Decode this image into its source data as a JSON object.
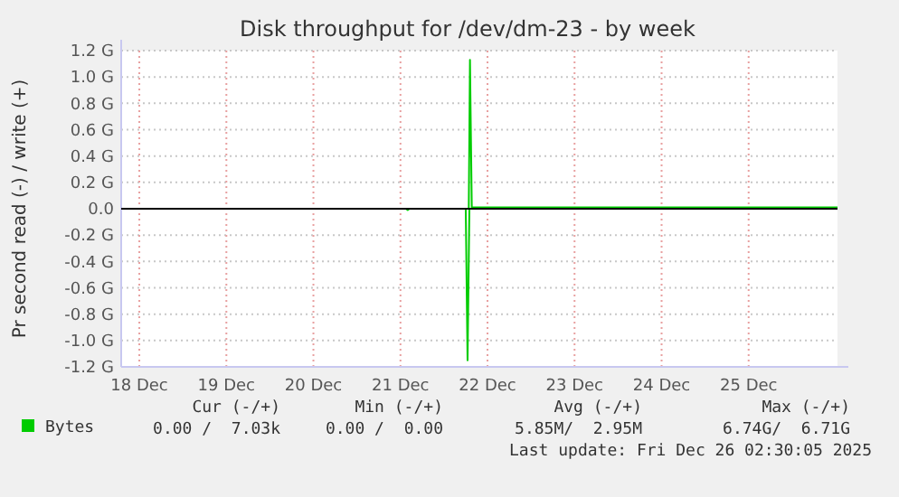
{
  "chart_data": {
    "type": "line",
    "title": "Disk throughput for /dev/dm-23 - by week",
    "ylabel": "Pr second read (-) / write (+)",
    "xlim": [
      "2025-12-17T19:00",
      "2025-12-26T00:30"
    ],
    "xticks": [
      {
        "value": "2025-12-18T00:00",
        "label": "18 Dec"
      },
      {
        "value": "2025-12-19T00:00",
        "label": "19 Dec"
      },
      {
        "value": "2025-12-20T00:00",
        "label": "20 Dec"
      },
      {
        "value": "2025-12-21T00:00",
        "label": "21 Dec"
      },
      {
        "value": "2025-12-22T00:00",
        "label": "22 Dec"
      },
      {
        "value": "2025-12-23T00:00",
        "label": "23 Dec"
      },
      {
        "value": "2025-12-24T00:00",
        "label": "24 Dec"
      },
      {
        "value": "2025-12-25T00:00",
        "label": "25 Dec"
      }
    ],
    "ylim": [
      -1.2,
      1.2
    ],
    "yticks": [
      {
        "value": -1.2,
        "label": "-1.2 G"
      },
      {
        "value": -1.0,
        "label": "-1.0 G"
      },
      {
        "value": -0.8,
        "label": "-0.8 G"
      },
      {
        "value": -0.6,
        "label": "-0.6 G"
      },
      {
        "value": -0.4,
        "label": "-0.4 G"
      },
      {
        "value": -0.2,
        "label": "-0.2 G"
      },
      {
        "value": 0,
        "label": "0.0"
      },
      {
        "value": 0.2,
        "label": "0.2 G"
      },
      {
        "value": 0.4,
        "label": "0.4 G"
      },
      {
        "value": 0.6,
        "label": "0.6 G"
      },
      {
        "value": 0.8,
        "label": "0.8 G"
      },
      {
        "value": 1.0,
        "label": "1.0 G"
      },
      {
        "value": 1.2,
        "label": "1.2 G"
      }
    ],
    "grid": true,
    "legend": "bottom",
    "ref_lines": [
      {
        "axis": "y",
        "value": 0,
        "color": "#000000"
      }
    ],
    "series": [
      {
        "name": "Bytes",
        "color": "#00cc00",
        "x": [
          "2025-12-17T19:00",
          "2025-12-21T18:00",
          "2025-12-21T18:50",
          "2025-12-21T19:10",
          "2025-12-21T19:40",
          "2025-12-22T00:00",
          "2025-12-22T06:00",
          "2025-12-22T12:00",
          "2025-12-22T18:00",
          "2025-12-23T00:00",
          "2025-12-23T06:00",
          "2025-12-23T12:00",
          "2025-12-23T18:00",
          "2025-12-24T00:00",
          "2025-12-24T06:00",
          "2025-12-24T12:00",
          "2025-12-24T18:00",
          "2025-12-25T00:00",
          "2025-12-25T06:00",
          "2025-12-25T12:00",
          "2025-12-25T18:00",
          "2025-12-26T00:30"
        ],
        "values": [
          0,
          0,
          0,
          1.13,
          0.01,
          0.01,
          0.01,
          0.01,
          0.01,
          0.01,
          0.01,
          0.01,
          0.01,
          0.01,
          0.01,
          0.01,
          0.01,
          0.01,
          0.01,
          0.01,
          0.01,
          0.01
        ]
      },
      {
        "color": "#00cc00",
        "x": [
          "2025-12-17T19:00",
          "2025-12-21T01:30",
          "2025-12-21T02:00",
          "2025-12-21T02:30",
          "2025-12-21T18:00",
          "2025-12-21T18:30",
          "2025-12-21T19:00",
          "2025-12-26T00:30"
        ],
        "values": [
          0,
          0,
          -0.01,
          0,
          0,
          -1.15,
          0,
          0
        ]
      }
    ],
    "annotations": [
      "Cur (-/+)",
      "Min (-/+)",
      "Avg (-/+)",
      "Max (-/+)",
      "0.00 /  7.03k",
      "0.00 /  0.00",
      "5.85M/  2.95M",
      "6.74G/  6.71G",
      "Last update: Fri Dec 26 02:30:05 2025"
    ]
  }
}
